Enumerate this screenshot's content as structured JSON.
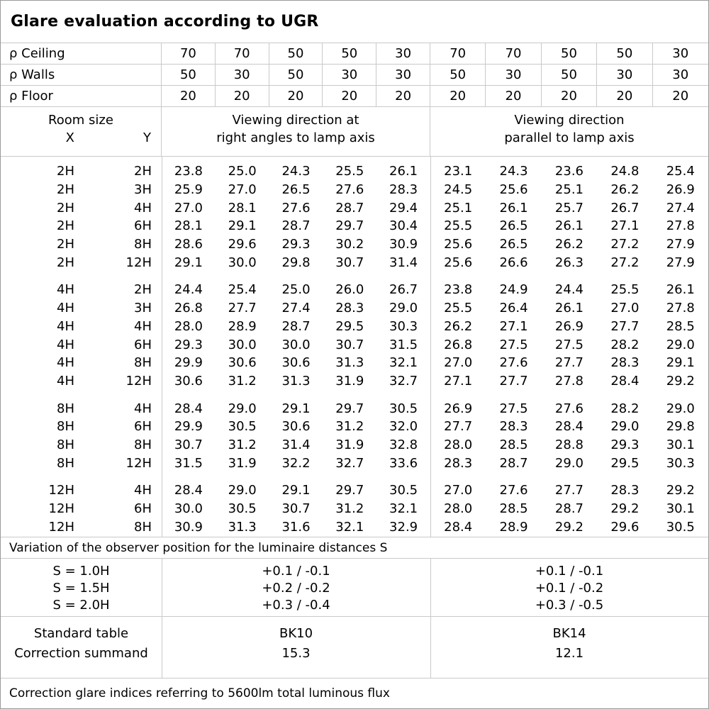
{
  "title": "Glare evaluation according to UGR",
  "reflectance_rows": [
    {
      "label": "ρ Ceiling",
      "values": [
        "70",
        "70",
        "50",
        "50",
        "30",
        "70",
        "70",
        "50",
        "50",
        "30"
      ]
    },
    {
      "label": "ρ Walls",
      "values": [
        "50",
        "30",
        "50",
        "30",
        "30",
        "50",
        "30",
        "50",
        "30",
        "30"
      ]
    },
    {
      "label": "ρ Floor",
      "values": [
        "20",
        "20",
        "20",
        "20",
        "20",
        "20",
        "20",
        "20",
        "20",
        "20"
      ]
    }
  ],
  "header": {
    "room_size": "Room size",
    "x": "X",
    "y": "Y",
    "left_title_line1": "Viewing direction at",
    "left_title_line2": "right angles to lamp axis",
    "right_title_line1": "Viewing direction",
    "right_title_line2": "parallel to lamp axis"
  },
  "ugr_rows": [
    {
      "x": "2H",
      "y": "2H",
      "v": [
        "23.8",
        "25.0",
        "24.3",
        "25.5",
        "26.1",
        "23.1",
        "24.3",
        "23.6",
        "24.8",
        "25.4"
      ]
    },
    {
      "x": "2H",
      "y": "3H",
      "v": [
        "25.9",
        "27.0",
        "26.5",
        "27.6",
        "28.3",
        "24.5",
        "25.6",
        "25.1",
        "26.2",
        "26.9"
      ]
    },
    {
      "x": "2H",
      "y": "4H",
      "v": [
        "27.0",
        "28.1",
        "27.6",
        "28.7",
        "29.4",
        "25.1",
        "26.1",
        "25.7",
        "26.7",
        "27.4"
      ]
    },
    {
      "x": "2H",
      "y": "6H",
      "v": [
        "28.1",
        "29.1",
        "28.7",
        "29.7",
        "30.4",
        "25.5",
        "26.5",
        "26.1",
        "27.1",
        "27.8"
      ]
    },
    {
      "x": "2H",
      "y": "8H",
      "v": [
        "28.6",
        "29.6",
        "29.3",
        "30.2",
        "30.9",
        "25.6",
        "26.5",
        "26.2",
        "27.2",
        "27.9"
      ]
    },
    {
      "x": "2H",
      "y": "12H",
      "v": [
        "29.1",
        "30.0",
        "29.8",
        "30.7",
        "31.4",
        "25.6",
        "26.6",
        "26.3",
        "27.2",
        "27.9"
      ]
    },
    {
      "x": "4H",
      "y": "2H",
      "v": [
        "24.4",
        "25.4",
        "25.0",
        "26.0",
        "26.7",
        "23.8",
        "24.9",
        "24.4",
        "25.5",
        "26.1"
      ]
    },
    {
      "x": "4H",
      "y": "3H",
      "v": [
        "26.8",
        "27.7",
        "27.4",
        "28.3",
        "29.0",
        "25.5",
        "26.4",
        "26.1",
        "27.0",
        "27.8"
      ]
    },
    {
      "x": "4H",
      "y": "4H",
      "v": [
        "28.0",
        "28.9",
        "28.7",
        "29.5",
        "30.3",
        "26.2",
        "27.1",
        "26.9",
        "27.7",
        "28.5"
      ]
    },
    {
      "x": "4H",
      "y": "6H",
      "v": [
        "29.3",
        "30.0",
        "30.0",
        "30.7",
        "31.5",
        "26.8",
        "27.5",
        "27.5",
        "28.2",
        "29.0"
      ]
    },
    {
      "x": "4H",
      "y": "8H",
      "v": [
        "29.9",
        "30.6",
        "30.6",
        "31.3",
        "32.1",
        "27.0",
        "27.6",
        "27.7",
        "28.3",
        "29.1"
      ]
    },
    {
      "x": "4H",
      "y": "12H",
      "v": [
        "30.6",
        "31.2",
        "31.3",
        "31.9",
        "32.7",
        "27.1",
        "27.7",
        "27.8",
        "28.4",
        "29.2"
      ]
    },
    {
      "x": "8H",
      "y": "4H",
      "v": [
        "28.4",
        "29.0",
        "29.1",
        "29.7",
        "30.5",
        "26.9",
        "27.5",
        "27.6",
        "28.2",
        "29.0"
      ]
    },
    {
      "x": "8H",
      "y": "6H",
      "v": [
        "29.9",
        "30.5",
        "30.6",
        "31.2",
        "32.0",
        "27.7",
        "28.3",
        "28.4",
        "29.0",
        "29.8"
      ]
    },
    {
      "x": "8H",
      "y": "8H",
      "v": [
        "30.7",
        "31.2",
        "31.4",
        "31.9",
        "32.8",
        "28.0",
        "28.5",
        "28.8",
        "29.3",
        "30.1"
      ]
    },
    {
      "x": "8H",
      "y": "12H",
      "v": [
        "31.5",
        "31.9",
        "32.2",
        "32.7",
        "33.6",
        "28.3",
        "28.7",
        "29.0",
        "29.5",
        "30.3"
      ]
    },
    {
      "x": "12H",
      "y": "4H",
      "v": [
        "28.4",
        "29.0",
        "29.1",
        "29.7",
        "30.5",
        "27.0",
        "27.6",
        "27.7",
        "28.3",
        "29.2"
      ]
    },
    {
      "x": "12H",
      "y": "6H",
      "v": [
        "30.0",
        "30.5",
        "30.7",
        "31.2",
        "32.1",
        "28.0",
        "28.5",
        "28.7",
        "29.2",
        "30.1"
      ]
    },
    {
      "x": "12H",
      "y": "8H",
      "v": [
        "30.9",
        "31.3",
        "31.6",
        "32.1",
        "32.9",
        "28.4",
        "28.9",
        "29.2",
        "29.6",
        "30.5"
      ]
    }
  ],
  "variation_note": "Variation of the observer position for the luminaire distances S",
  "spacing": {
    "rows": [
      {
        "label": "S = 1.0H",
        "left": "+0.1 / -0.1",
        "right": "+0.1 / -0.1"
      },
      {
        "label": "S = 1.5H",
        "left": "+0.2 / -0.2",
        "right": "+0.1 / -0.2"
      },
      {
        "label": "S = 2.0H",
        "left": "+0.3 / -0.4",
        "right": "+0.3 / -0.5"
      }
    ]
  },
  "summary": {
    "row1_label": "Standard table",
    "row2_label": "Correction summand",
    "left_table": "BK10",
    "left_value": "15.3",
    "right_table": "BK14",
    "right_value": "12.1"
  },
  "footer_note": "Correction glare indices referring to 5600lm total luminous flux"
}
